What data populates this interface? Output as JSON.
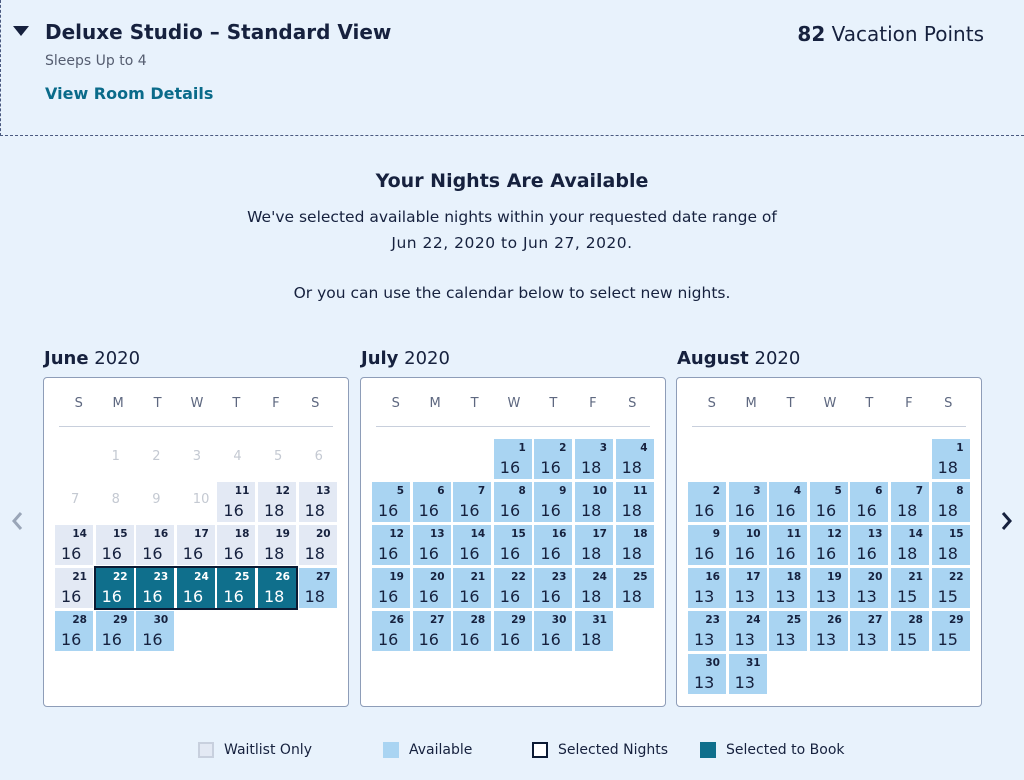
{
  "room": {
    "title": "Deluxe Studio – Standard View",
    "sleeps": "Sleeps Up to 4",
    "details_link": "View Room Details",
    "points_value": "82",
    "points_label": "Vacation Points"
  },
  "availability": {
    "heading": "Your Nights Are Available",
    "line1": "We've selected available nights within your requested date range of",
    "line2": "Jun 22, 2020 to Jun 27, 2020.",
    "line3": "Or you can use the calendar below to select new nights."
  },
  "weekdays": [
    "S",
    "M",
    "T",
    "W",
    "T",
    "F",
    "S"
  ],
  "months": [
    {
      "name": "June",
      "year": "2020",
      "first_weekday": 1,
      "days": [
        {
          "d": 1,
          "s": "empty"
        },
        {
          "d": 2,
          "s": "empty"
        },
        {
          "d": 3,
          "s": "empty"
        },
        {
          "d": 4,
          "s": "empty"
        },
        {
          "d": 5,
          "s": "empty"
        },
        {
          "d": 6,
          "s": "empty"
        },
        {
          "d": 7,
          "s": "empty"
        },
        {
          "d": 8,
          "s": "empty"
        },
        {
          "d": 9,
          "s": "empty"
        },
        {
          "d": 10,
          "s": "empty"
        },
        {
          "d": 11,
          "p": "16",
          "s": "waitlist"
        },
        {
          "d": 12,
          "p": "18",
          "s": "waitlist"
        },
        {
          "d": 13,
          "p": "18",
          "s": "waitlist"
        },
        {
          "d": 14,
          "p": "16",
          "s": "waitlist"
        },
        {
          "d": 15,
          "p": "16",
          "s": "waitlist"
        },
        {
          "d": 16,
          "p": "16",
          "s": "waitlist"
        },
        {
          "d": 17,
          "p": "16",
          "s": "waitlist"
        },
        {
          "d": 18,
          "p": "16",
          "s": "waitlist"
        },
        {
          "d": 19,
          "p": "18",
          "s": "waitlist"
        },
        {
          "d": 20,
          "p": "18",
          "s": "waitlist"
        },
        {
          "d": 21,
          "p": "16",
          "s": "waitlist"
        },
        {
          "d": 22,
          "p": "16",
          "s": "booked"
        },
        {
          "d": 23,
          "p": "16",
          "s": "booked"
        },
        {
          "d": 24,
          "p": "16",
          "s": "booked"
        },
        {
          "d": 25,
          "p": "16",
          "s": "booked"
        },
        {
          "d": 26,
          "p": "18",
          "s": "booked"
        },
        {
          "d": 27,
          "p": "18",
          "s": "avail"
        },
        {
          "d": 28,
          "p": "16",
          "s": "avail"
        },
        {
          "d": 29,
          "p": "16",
          "s": "avail"
        },
        {
          "d": 30,
          "p": "16",
          "s": "avail"
        }
      ]
    },
    {
      "name": "July",
      "year": "2020",
      "first_weekday": 3,
      "days": [
        {
          "d": 1,
          "p": "16",
          "s": "avail"
        },
        {
          "d": 2,
          "p": "16",
          "s": "avail"
        },
        {
          "d": 3,
          "p": "18",
          "s": "avail"
        },
        {
          "d": 4,
          "p": "18",
          "s": "avail"
        },
        {
          "d": 5,
          "p": "16",
          "s": "avail"
        },
        {
          "d": 6,
          "p": "16",
          "s": "avail"
        },
        {
          "d": 7,
          "p": "16",
          "s": "avail"
        },
        {
          "d": 8,
          "p": "16",
          "s": "avail"
        },
        {
          "d": 9,
          "p": "16",
          "s": "avail"
        },
        {
          "d": 10,
          "p": "18",
          "s": "avail"
        },
        {
          "d": 11,
          "p": "18",
          "s": "avail"
        },
        {
          "d": 12,
          "p": "16",
          "s": "avail"
        },
        {
          "d": 13,
          "p": "16",
          "s": "avail"
        },
        {
          "d": 14,
          "p": "16",
          "s": "avail"
        },
        {
          "d": 15,
          "p": "16",
          "s": "avail"
        },
        {
          "d": 16,
          "p": "16",
          "s": "avail"
        },
        {
          "d": 17,
          "p": "18",
          "s": "avail"
        },
        {
          "d": 18,
          "p": "18",
          "s": "avail"
        },
        {
          "d": 19,
          "p": "16",
          "s": "avail"
        },
        {
          "d": 20,
          "p": "16",
          "s": "avail"
        },
        {
          "d": 21,
          "p": "16",
          "s": "avail"
        },
        {
          "d": 22,
          "p": "16",
          "s": "avail"
        },
        {
          "d": 23,
          "p": "16",
          "s": "avail"
        },
        {
          "d": 24,
          "p": "18",
          "s": "avail"
        },
        {
          "d": 25,
          "p": "18",
          "s": "avail"
        },
        {
          "d": 26,
          "p": "16",
          "s": "avail"
        },
        {
          "d": 27,
          "p": "16",
          "s": "avail"
        },
        {
          "d": 28,
          "p": "16",
          "s": "avail"
        },
        {
          "d": 29,
          "p": "16",
          "s": "avail"
        },
        {
          "d": 30,
          "p": "16",
          "s": "avail"
        },
        {
          "d": 31,
          "p": "18",
          "s": "avail"
        }
      ]
    },
    {
      "name": "August",
      "year": "2020",
      "first_weekday": 6,
      "days": [
        {
          "d": 1,
          "p": "18",
          "s": "avail"
        },
        {
          "d": 2,
          "p": "16",
          "s": "avail"
        },
        {
          "d": 3,
          "p": "16",
          "s": "avail"
        },
        {
          "d": 4,
          "p": "16",
          "s": "avail"
        },
        {
          "d": 5,
          "p": "16",
          "s": "avail"
        },
        {
          "d": 6,
          "p": "16",
          "s": "avail"
        },
        {
          "d": 7,
          "p": "18",
          "s": "avail"
        },
        {
          "d": 8,
          "p": "18",
          "s": "avail"
        },
        {
          "d": 9,
          "p": "16",
          "s": "avail"
        },
        {
          "d": 10,
          "p": "16",
          "s": "avail"
        },
        {
          "d": 11,
          "p": "16",
          "s": "avail"
        },
        {
          "d": 12,
          "p": "16",
          "s": "avail"
        },
        {
          "d": 13,
          "p": "16",
          "s": "avail"
        },
        {
          "d": 14,
          "p": "18",
          "s": "avail"
        },
        {
          "d": 15,
          "p": "18",
          "s": "avail"
        },
        {
          "d": 16,
          "p": "13",
          "s": "avail"
        },
        {
          "d": 17,
          "p": "13",
          "s": "avail"
        },
        {
          "d": 18,
          "p": "13",
          "s": "avail"
        },
        {
          "d": 19,
          "p": "13",
          "s": "avail"
        },
        {
          "d": 20,
          "p": "13",
          "s": "avail"
        },
        {
          "d": 21,
          "p": "15",
          "s": "avail"
        },
        {
          "d": 22,
          "p": "15",
          "s": "avail"
        },
        {
          "d": 23,
          "p": "13",
          "s": "avail"
        },
        {
          "d": 24,
          "p": "13",
          "s": "avail"
        },
        {
          "d": 25,
          "p": "13",
          "s": "avail"
        },
        {
          "d": 26,
          "p": "13",
          "s": "avail"
        },
        {
          "d": 27,
          "p": "13",
          "s": "avail"
        },
        {
          "d": 28,
          "p": "15",
          "s": "avail"
        },
        {
          "d": 29,
          "p": "15",
          "s": "avail"
        },
        {
          "d": 30,
          "p": "13",
          "s": "avail"
        },
        {
          "d": 31,
          "p": "13",
          "s": "avail"
        }
      ]
    }
  ],
  "selected_nights": {
    "month": 0,
    "from": 22,
    "to": 26
  },
  "nav": {
    "prev_icon": "chevron-left-icon",
    "next_icon": "chevron-right-icon"
  },
  "legend": [
    {
      "label": "Waitlist Only",
      "color": "#e3e9f4",
      "border": "#c8d0de"
    },
    {
      "label": "Available",
      "color": "#a9d4f2",
      "border": "#a9d4f2"
    },
    {
      "label": "Selected Nights",
      "color": "#ffffff",
      "border": "#0b1a33"
    },
    {
      "label": "Selected to Book",
      "color": "#0f6f8c",
      "border": "#0f6f8c"
    }
  ],
  "colors": {
    "available": "#a9d4f2",
    "waitlist": "#e3e9f4",
    "booked": "#0f6f8c",
    "link": "#0a6b8a"
  }
}
